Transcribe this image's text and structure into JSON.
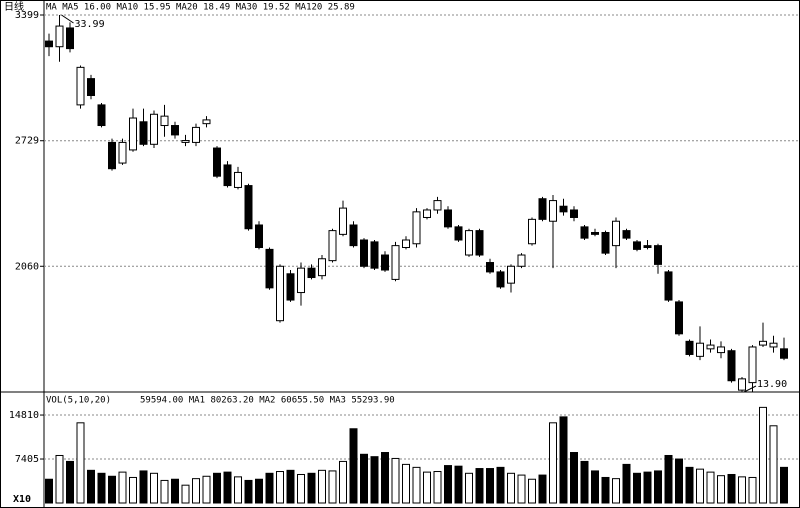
{
  "chart_data": [
    {
      "type": "candlestick",
      "title": "日线",
      "header": "MA MA5 16.00 MA10 15.95 MA20 18.49 MA30 19.52 MA120 25.89",
      "annotations": [
        "33.99",
        "13.90"
      ],
      "open": [
        3260,
        3230,
        3330,
        2920,
        3060,
        2920,
        2720,
        2610,
        2680,
        2830,
        2710,
        2810,
        2810,
        2720,
        2720,
        2820,
        2690,
        2600,
        2480,
        2490,
        2280,
        2150,
        1770,
        2020,
        1920,
        2050,
        2010,
        2090,
        2230,
        2280,
        2200,
        2190,
        2120,
        1990,
        2160,
        2180,
        2320,
        2360,
        2360,
        2270,
        2120,
        2250,
        2080,
        2030,
        1970,
        2060,
        2180,
        2420,
        2300,
        2380,
        2360,
        2270,
        2240,
        2240,
        2170,
        2250,
        2190,
        2170,
        2170,
        2030,
        1870,
        1660,
        1580,
        1620,
        1600,
        1610,
        1400,
        1440,
        1640,
        1630,
        1620
      ],
      "high": [
        3300,
        3399,
        3360,
        3130,
        3080,
        2930,
        2740,
        2740,
        2900,
        2900,
        2890,
        2920,
        2830,
        2760,
        2820,
        2860,
        2700,
        2620,
        2590,
        2500,
        2300,
        2160,
        2070,
        2040,
        2080,
        2070,
        2120,
        2260,
        2410,
        2300,
        2210,
        2200,
        2140,
        2190,
        2220,
        2370,
        2370,
        2430,
        2380,
        2280,
        2260,
        2260,
        2100,
        2040,
        2070,
        2130,
        2320,
        2430,
        2440,
        2420,
        2380,
        2280,
        2260,
        2250,
        2320,
        2260,
        2200,
        2200,
        2180,
        2040,
        1880,
        1670,
        1740,
        1670,
        1660,
        1620,
        1470,
        1640,
        1760,
        1690,
        1680
      ],
      "low": [
        3180,
        3150,
        3200,
        2900,
        2950,
        2800,
        2570,
        2600,
        2670,
        2700,
        2690,
        2750,
        2740,
        2700,
        2700,
        2800,
        2530,
        2480,
        2470,
        2250,
        2150,
        1935,
        1760,
        1870,
        1850,
        1990,
        1990,
        2080,
        2220,
        2160,
        2050,
        2040,
        2030,
        1980,
        2150,
        2160,
        2310,
        2340,
        2260,
        2190,
        2110,
        2110,
        2020,
        1940,
        1920,
        2050,
        2170,
        2300,
        2050,
        2330,
        2300,
        2200,
        2220,
        2120,
        2050,
        2200,
        2140,
        2150,
        2020,
        1870,
        1690,
        1580,
        1560,
        1600,
        1570,
        1440,
        1390,
        1390,
        1630,
        1600,
        1560
      ],
      "close": [
        3230,
        3340,
        3220,
        3120,
        2970,
        2810,
        2580,
        2720,
        2850,
        2710,
        2870,
        2860,
        2760,
        2730,
        2800,
        2840,
        2540,
        2490,
        2560,
        2260,
        2160,
        1945,
        2060,
        1880,
        2050,
        2000,
        2100,
        2250,
        2370,
        2170,
        2060,
        2050,
        2040,
        2170,
        2200,
        2350,
        2360,
        2410,
        2270,
        2200,
        2250,
        2120,
        2030,
        1950,
        2060,
        2120,
        2310,
        2310,
        2410,
        2350,
        2320,
        2210,
        2230,
        2130,
        2300,
        2210,
        2150,
        2160,
        2070,
        1880,
        1700,
        1590,
        1650,
        1640,
        1630,
        1450,
        1460,
        1630,
        1660,
        1650,
        1570
      ],
      "ylim": [
        1390,
        3399
      ],
      "yticks": [
        3399,
        2729,
        2060
      ],
      "grid": true
    },
    {
      "type": "bar",
      "title": "VOL(5,10,20)",
      "header": "59594.00 MA1 80263.20 MA2 60655.50 MA3 55293.90",
      "unit": "X10",
      "values": [
        4000,
        8000,
        7000,
        13500,
        5500,
        5000,
        4500,
        5200,
        4300,
        5400,
        5000,
        3800,
        4000,
        3000,
        4100,
        4500,
        5000,
        5200,
        4400,
        3800,
        4000,
        5000,
        5300,
        5500,
        4800,
        5000,
        5500,
        5400,
        7000,
        12500,
        8200,
        7800,
        8500,
        7500,
        6500,
        6000,
        5200,
        5300,
        6300,
        6200,
        5000,
        5800,
        5800,
        6000,
        5000,
        4700,
        4000,
        4700,
        13500,
        14500,
        8500,
        7000,
        5400,
        4300,
        4100,
        6500,
        5000,
        5200,
        5400,
        8000,
        7400,
        6000,
        5700,
        5200,
        4600,
        4800,
        4400,
        4300,
        16100,
        13000,
        6000
      ],
      "ylim": [
        0,
        16500
      ],
      "yticks": [
        14810,
        7405
      ],
      "grid": true
    }
  ]
}
